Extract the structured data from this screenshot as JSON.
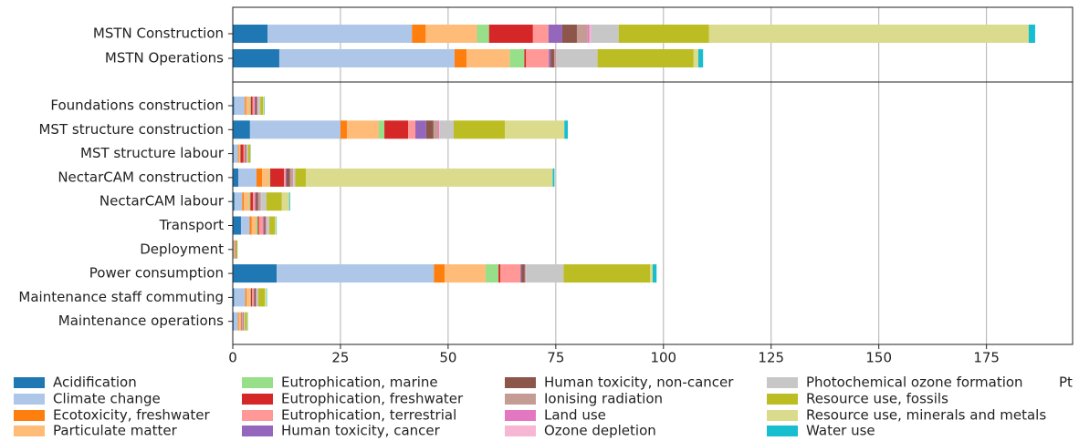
{
  "chart_data": {
    "type": "bar",
    "orientation": "horizontal",
    "stacked": true,
    "categories": [
      "MSTN Construction",
      "MSTN Operations",
      "Foundations construction",
      "MST structure construction",
      "MST structure labour",
      "NectarCAM construction",
      "NectarCAM labour",
      "Transport",
      "Deployment",
      "Power consumption",
      "Maintenance staff commuting",
      "Maintenance operations"
    ],
    "xlabel": "Pt",
    "xlim": [
      0,
      195
    ],
    "xticks": [
      0,
      25,
      50,
      75,
      100,
      125,
      150,
      175
    ],
    "grid": true,
    "series": [
      {
        "name": "Acidification",
        "color": "#1f77b4",
        "values": [
          8.1,
          10.8,
          0.3,
          4.0,
          0.2,
          1.3,
          0.4,
          1.9,
          0.05,
          10.2,
          0.3,
          0.2
        ]
      },
      {
        "name": "Climate change",
        "color": "#aec7e8",
        "values": [
          33.5,
          40.7,
          2.5,
          21.0,
          1.0,
          4.2,
          1.8,
          2.0,
          0.2,
          36.5,
          2.6,
          1.0
        ]
      },
      {
        "name": "Ecotoxicity, freshwater",
        "color": "#ff7f0e",
        "values": [
          3.2,
          2.8,
          0.3,
          1.5,
          0.2,
          1.3,
          0.4,
          0.5,
          0.15,
          2.5,
          0.3,
          0.2
        ]
      },
      {
        "name": "Particulate matter",
        "color": "#ffbb78",
        "values": [
          11.9,
          10.0,
          0.8,
          7.4,
          0.3,
          1.7,
          1.2,
          1.0,
          0.1,
          9.5,
          0.8,
          0.4
        ]
      },
      {
        "name": "Eutrophication, marine",
        "color": "#98df8a",
        "values": [
          2.8,
          3.4,
          0.3,
          1.3,
          0.1,
          0.2,
          0.3,
          0.4,
          0.02,
          3.0,
          0.2,
          0.1
        ]
      },
      {
        "name": "Eutrophication, freshwater",
        "color": "#d62728",
        "values": [
          10.2,
          0.4,
          0.4,
          5.5,
          0.7,
          3.2,
          0.6,
          0.3,
          0.05,
          0.4,
          0.3,
          0.1
        ]
      },
      {
        "name": "Eutrophication, terrestrial",
        "color": "#ff9896",
        "values": [
          3.6,
          5.3,
          0.5,
          1.7,
          0.3,
          0.4,
          0.5,
          1.0,
          0.05,
          4.7,
          0.4,
          0.3
        ]
      },
      {
        "name": "Human toxicity, cancer",
        "color": "#9467bd",
        "values": [
          3.2,
          0.4,
          0.2,
          2.5,
          0.1,
          0.2,
          0.2,
          0.2,
          0.02,
          0.2,
          0.1,
          0.05
        ]
      },
      {
        "name": "Human toxicity, non-cancer",
        "color": "#8c564b",
        "values": [
          3.4,
          0.8,
          0.3,
          1.7,
          0.2,
          0.8,
          0.5,
          0.3,
          0.1,
          0.8,
          0.3,
          0.1
        ]
      },
      {
        "name": "Ionising radiation",
        "color": "#c49c94",
        "values": [
          2.5,
          0.4,
          0.2,
          1.1,
          0.1,
          0.6,
          0.6,
          0.2,
          0.02,
          0.2,
          0.2,
          0.1
        ]
      },
      {
        "name": "Land use",
        "color": "#e377c2",
        "values": [
          0.4,
          0.1,
          0.05,
          0.2,
          0.02,
          0.1,
          0.05,
          0.05,
          0,
          0.05,
          0.02,
          0.02
        ]
      },
      {
        "name": "Ozone depletion",
        "color": "#f7b6d2",
        "values": [
          0.4,
          0.1,
          0.05,
          0.2,
          0.02,
          0.1,
          0.05,
          0.05,
          0,
          0.05,
          0.02,
          0.02
        ]
      },
      {
        "name": "Photochemical ozone formation",
        "color": "#c7c7c7",
        "values": [
          6.4,
          9.5,
          0.5,
          3.2,
          0.3,
          0.4,
          1.2,
          0.6,
          0.05,
          8.7,
          0.4,
          0.2
        ]
      },
      {
        "name": "Resource use, fossils",
        "color": "#bcbd22",
        "values": [
          21.0,
          22.3,
          0.6,
          11.9,
          0.5,
          2.5,
          3.6,
          1.3,
          0.25,
          20.1,
          1.5,
          0.5
        ]
      },
      {
        "name": "Resource use, minerals and metals",
        "color": "#dbdb8d",
        "values": [
          74.2,
          1.1,
          0.3,
          13.8,
          0.1,
          57.3,
          1.7,
          0.3,
          0.05,
          0.6,
          0.4,
          0.2
        ]
      },
      {
        "name": "Water use",
        "color": "#17becf",
        "values": [
          1.5,
          1.1,
          0.1,
          0.8,
          0.05,
          0.4,
          0.2,
          0.1,
          0.02,
          0.9,
          0.1,
          0.05
        ]
      }
    ]
  }
}
